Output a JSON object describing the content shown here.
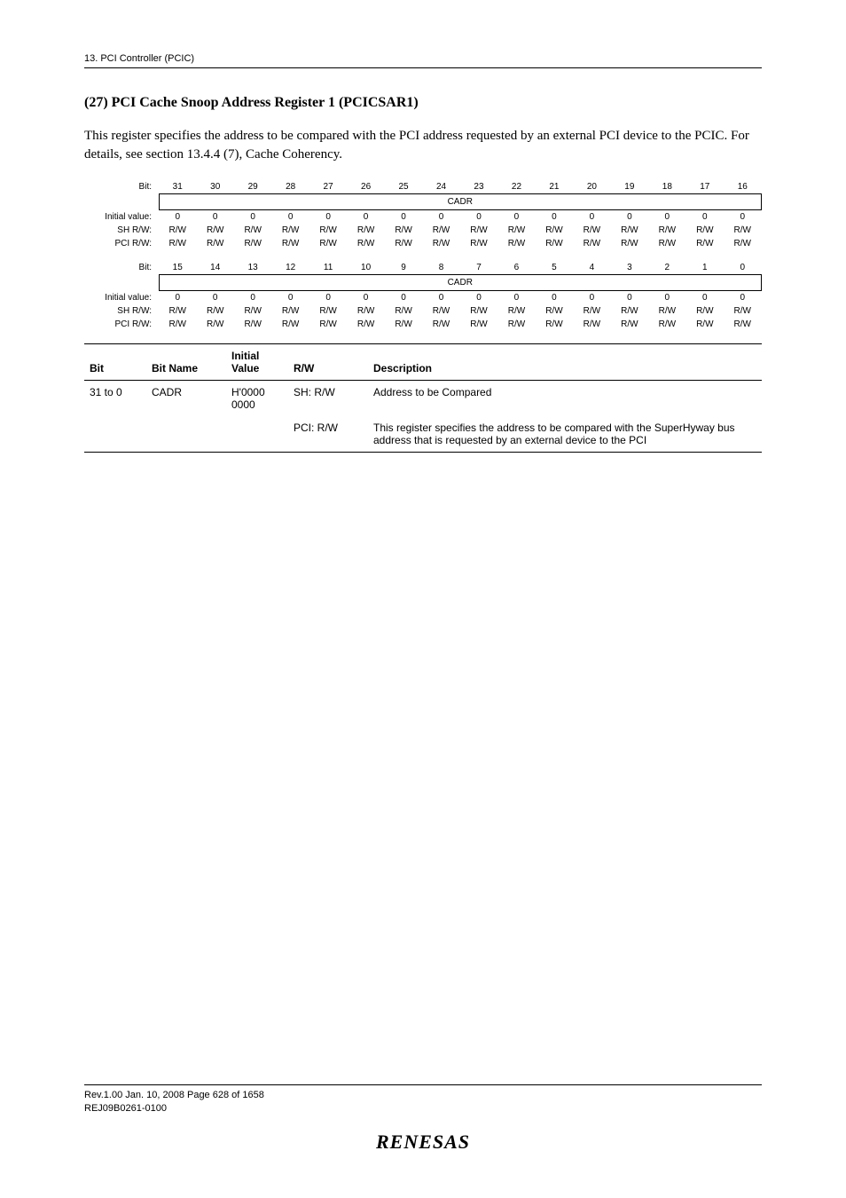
{
  "header": "13.   PCI Controller (PCIC)",
  "section_title": "(27)  PCI Cache Snoop Address Register 1 (PCICSAR1)",
  "body_para": "This register specifies the address to be compared with the PCI address requested by an external PCI device to the PCIC. For details, see section 13.4.4 (7), Cache Coherency.",
  "bitmap": {
    "rows": [
      {
        "label": "Bit:",
        "cells": [
          "31",
          "30",
          "29",
          "28",
          "27",
          "26",
          "25",
          "24",
          "23",
          "22",
          "21",
          "20",
          "19",
          "18",
          "17",
          "16"
        ],
        "type": "bits"
      },
      {
        "label": "",
        "field_label": "CADR",
        "type": "field"
      },
      {
        "label": "Initial value:",
        "cells": [
          "0",
          "0",
          "0",
          "0",
          "0",
          "0",
          "0",
          "0",
          "0",
          "0",
          "0",
          "0",
          "0",
          "0",
          "0",
          "0"
        ],
        "type": "vals"
      },
      {
        "label": "SH R/W:",
        "cells": [
          "R/W",
          "R/W",
          "R/W",
          "R/W",
          "R/W",
          "R/W",
          "R/W",
          "R/W",
          "R/W",
          "R/W",
          "R/W",
          "R/W",
          "R/W",
          "R/W",
          "R/W",
          "R/W"
        ],
        "type": "vals"
      },
      {
        "label": "PCI R/W:",
        "cells": [
          "R/W",
          "R/W",
          "R/W",
          "R/W",
          "R/W",
          "R/W",
          "R/W",
          "R/W",
          "R/W",
          "R/W",
          "R/W",
          "R/W",
          "R/W",
          "R/W",
          "R/W",
          "R/W"
        ],
        "type": "vals"
      },
      {
        "label": "Bit:",
        "cells": [
          "15",
          "14",
          "13",
          "12",
          "11",
          "10",
          "9",
          "8",
          "7",
          "6",
          "5",
          "4",
          "3",
          "2",
          "1",
          "0"
        ],
        "type": "bits"
      },
      {
        "label": "",
        "field_label": "CADR",
        "type": "field"
      },
      {
        "label": "Initial value:",
        "cells": [
          "0",
          "0",
          "0",
          "0",
          "0",
          "0",
          "0",
          "0",
          "0",
          "0",
          "0",
          "0",
          "0",
          "0",
          "0",
          "0"
        ],
        "type": "vals"
      },
      {
        "label": "SH R/W:",
        "cells": [
          "R/W",
          "R/W",
          "R/W",
          "R/W",
          "R/W",
          "R/W",
          "R/W",
          "R/W",
          "R/W",
          "R/W",
          "R/W",
          "R/W",
          "R/W",
          "R/W",
          "R/W",
          "R/W"
        ],
        "type": "vals"
      },
      {
        "label": "PCI R/W:",
        "cells": [
          "R/W",
          "R/W",
          "R/W",
          "R/W",
          "R/W",
          "R/W",
          "R/W",
          "R/W",
          "R/W",
          "R/W",
          "R/W",
          "R/W",
          "R/W",
          "R/W",
          "R/W",
          "R/W"
        ],
        "type": "vals"
      }
    ]
  },
  "desc_table": {
    "headers": {
      "bit": "Bit",
      "bitname": "Bit Name",
      "initial": "Initial Value",
      "rw": "R/W",
      "desc": "Description"
    },
    "row": {
      "bit": "31 to 0",
      "bitname": "CADR",
      "initial": "H'0000 0000",
      "rw1": "SH: R/W",
      "rw2": "PCI: R/W",
      "desc1": "Address to be Compared",
      "desc2": "This register specifies the address to be compared with the SuperHyway bus address that is requested by an external device to the PCI"
    }
  },
  "footer": {
    "line1": "Rev.1.00  Jan. 10, 2008  Page 628 of 1658",
    "line2": "REJ09B0261-0100",
    "logo": "RENESAS"
  }
}
